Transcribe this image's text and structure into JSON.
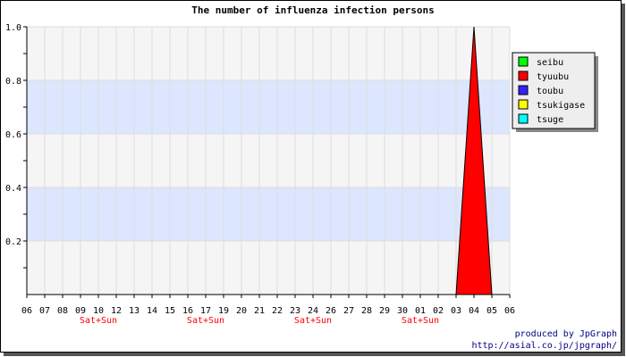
{
  "chart_data": {
    "type": "area",
    "title": "The number of influenza infection persons",
    "x": [
      "06",
      "07",
      "08",
      "09",
      "10",
      "12",
      "13",
      "14",
      "15",
      "16",
      "17",
      "19",
      "20",
      "21",
      "22",
      "23",
      "24",
      "26",
      "27",
      "28",
      "29",
      "30",
      "01",
      "02",
      "03",
      "04",
      "05",
      "06"
    ],
    "weekend_labels": [
      {
        "index": 4,
        "text": "Sat+Sun"
      },
      {
        "index": 10,
        "text": "Sat+Sun"
      },
      {
        "index": 16,
        "text": "Sat+Sun"
      },
      {
        "index": 22,
        "text": "Sat+Sun"
      }
    ],
    "ylim": [
      0,
      1.0
    ],
    "yticks": [
      "0.2",
      "0.4",
      "0.6",
      "0.8",
      "1.0"
    ],
    "grid": true,
    "legend_position": "top-right",
    "series": [
      {
        "name": "seibu",
        "color": "#00ff00",
        "values": [
          0,
          0,
          0,
          0,
          0,
          0,
          0,
          0,
          0,
          0,
          0,
          0,
          0,
          0,
          0,
          0,
          0,
          0,
          0,
          0,
          0,
          0,
          0,
          0,
          0,
          0,
          0,
          0
        ]
      },
      {
        "name": "tyuubu",
        "color": "#ff0000",
        "values": [
          0,
          0,
          0,
          0,
          0,
          0,
          0,
          0,
          0,
          0,
          0,
          0,
          0,
          0,
          0,
          0,
          0,
          0,
          0,
          0,
          0,
          0,
          0,
          0,
          0,
          1,
          0,
          0
        ]
      },
      {
        "name": "toubu",
        "color": "#3322ff",
        "values": [
          0,
          0,
          0,
          0,
          0,
          0,
          0,
          0,
          0,
          0,
          0,
          0,
          0,
          0,
          0,
          0,
          0,
          0,
          0,
          0,
          0,
          0,
          0,
          0,
          0,
          0,
          0,
          0
        ]
      },
      {
        "name": "tsukigase",
        "color": "#ffff00",
        "values": [
          0,
          0,
          0,
          0,
          0,
          0,
          0,
          0,
          0,
          0,
          0,
          0,
          0,
          0,
          0,
          0,
          0,
          0,
          0,
          0,
          0,
          0,
          0,
          0,
          0,
          0,
          0,
          0
        ]
      },
      {
        "name": "tsuge",
        "color": "#00ffff",
        "values": [
          0,
          0,
          0,
          0,
          0,
          0,
          0,
          0,
          0,
          0,
          0,
          0,
          0,
          0,
          0,
          0,
          0,
          0,
          0,
          0,
          0,
          0,
          0,
          0,
          0,
          0,
          0,
          0
        ]
      }
    ]
  },
  "credits": {
    "line1": "produced by JpGraph",
    "line2": "http://asial.co.jp/jpgraph/"
  }
}
